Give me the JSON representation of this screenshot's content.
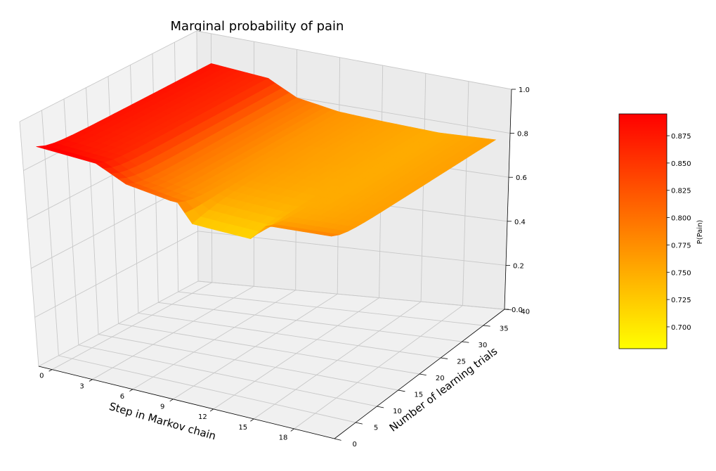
{
  "chart_data": {
    "type": "surface3d",
    "title": "Marginal probability of pain",
    "xlabel": "Step in Markov chain",
    "ylabel": "Number of learning trials",
    "zlabel": "",
    "x_ticks": [
      0,
      3,
      6,
      9,
      12,
      15,
      18
    ],
    "y_ticks": [
      0,
      5,
      10,
      15,
      20,
      25,
      30,
      35,
      40
    ],
    "z_ticks": [
      "0.0",
      "0.2",
      "0.4",
      "0.6",
      "0.8",
      "1.0"
    ],
    "xlim": [
      -1,
      21
    ],
    "ylim": [
      0,
      40
    ],
    "zlim": [
      0,
      1
    ],
    "grid": true,
    "surface_x_range": [
      0,
      20
    ],
    "surface_y_range": [
      0,
      40
    ],
    "surface_shape": "z near 0.80-0.90 for early Markov steps (high at low learning trials, steps down around step 5 and 9), falling to about 0.70 with a dip near steps 10-15 at low learning trials; ~0.76 elsewhere",
    "z_step_profile": [
      {
        "step": 0,
        "z": 0.88
      },
      {
        "step": 4,
        "z": 0.86
      },
      {
        "step": 6,
        "z": 0.8
      },
      {
        "step": 9,
        "z": 0.77
      },
      {
        "step": 12,
        "z": 0.76
      },
      {
        "step": 16,
        "z": 0.75
      },
      {
        "step": 20,
        "z": 0.76
      }
    ],
    "colorbar": {
      "label": "P(Pain)",
      "colormap": "autumn_r",
      "min": 0.68,
      "max": 0.895,
      "ticks": [
        "0.700",
        "0.725",
        "0.750",
        "0.775",
        "0.800",
        "0.825",
        "0.850",
        "0.875"
      ],
      "color_low": "#ffff00",
      "color_high": "#ff0000"
    }
  }
}
